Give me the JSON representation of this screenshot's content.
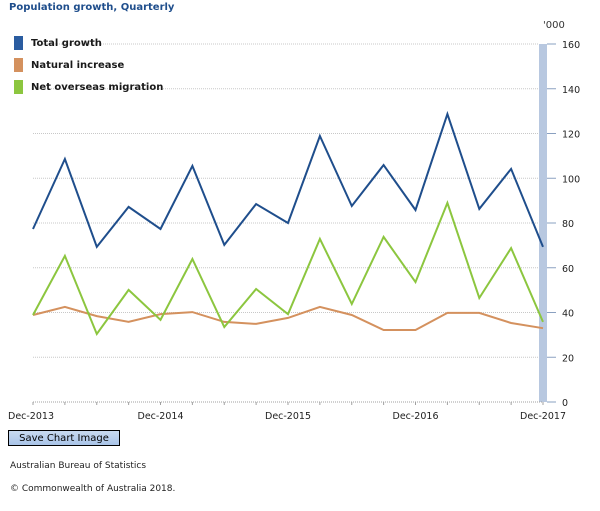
{
  "chart_data": {
    "type": "line",
    "title": "Population growth, Quarterly",
    "xlabel": "",
    "ylabel": "'000",
    "ylim": [
      0,
      160
    ],
    "yticks": [
      0,
      20,
      40,
      60,
      80,
      100,
      120,
      140,
      160
    ],
    "x_tick_labels": [
      "Dec-2013",
      "Dec-2014",
      "Dec-2015",
      "Dec-2016",
      "Dec-2017"
    ],
    "x": [
      "Dec-2013",
      "Mar-2014",
      "Jun-2014",
      "Sep-2014",
      "Dec-2014",
      "Mar-2015",
      "Jun-2015",
      "Sep-2015",
      "Dec-2015",
      "Mar-2016",
      "Jun-2016",
      "Sep-2016",
      "Dec-2016",
      "Mar-2017",
      "Jun-2017",
      "Sep-2017",
      "Dec-2017"
    ],
    "grid": true,
    "legend_position": "top-left",
    "series": [
      {
        "name": "Total growth",
        "color": "#1f4e8c",
        "values": [
          77.3,
          108.6,
          69.3,
          87.2,
          77.3,
          105.5,
          70.2,
          88.5,
          80.0,
          118.9,
          87.6,
          105.9,
          85.8,
          128.7,
          86.3,
          104.2,
          69.3
        ]
      },
      {
        "name": "Natural increase",
        "color": "#d4915e",
        "values": [
          38.9,
          42.5,
          38.4,
          35.8,
          39.3,
          40.2,
          35.8,
          34.9,
          37.6,
          42.5,
          38.9,
          32.2,
          32.2,
          39.8,
          39.8,
          35.3,
          33.0
        ]
      },
      {
        "name": "Net overseas migration",
        "color": "#8cc63f",
        "values": [
          38.9,
          65.3,
          30.4,
          50.1,
          36.7,
          63.9,
          33.5,
          50.5,
          39.3,
          72.9,
          43.8,
          73.8,
          53.6,
          89.0,
          46.5,
          68.8,
          35.8
        ]
      }
    ]
  },
  "ui": {
    "save_button_label": "Save Chart Image",
    "source": "Australian Bureau of Statistics",
    "copyright": "© Commonwealth of Australia 2018.",
    "colors": {
      "title": "#1f4e8c",
      "gridline": "#c8c8c8",
      "axis_band": "#b8c8e0"
    }
  }
}
